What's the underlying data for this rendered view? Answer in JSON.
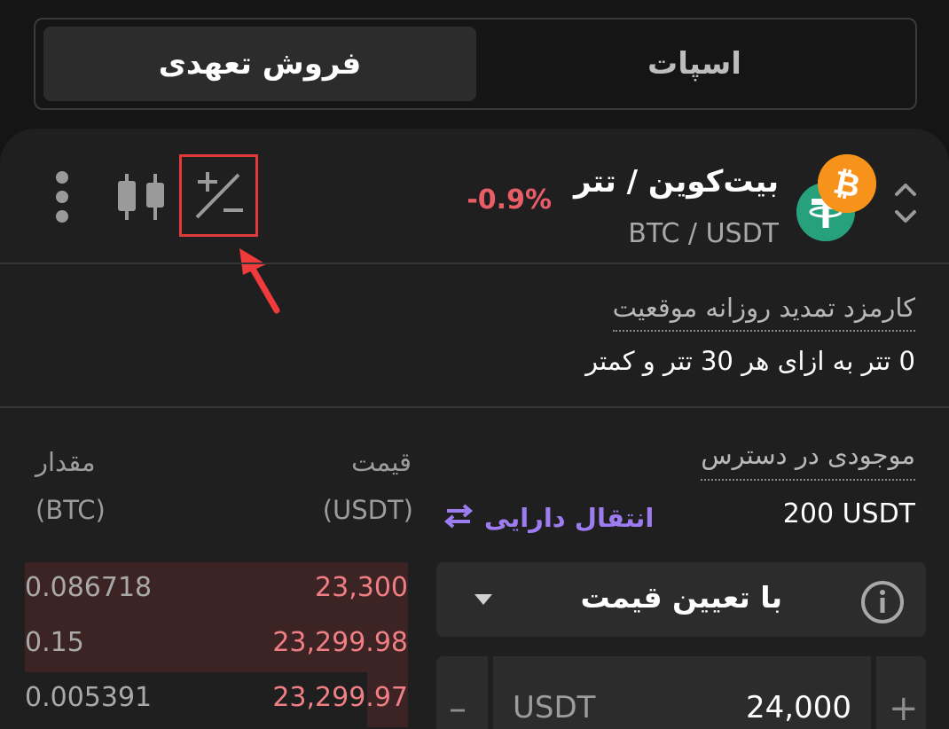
{
  "tabs": {
    "active_label": "فروش تعهدی",
    "inactive_label": "اسپات"
  },
  "pair": {
    "title": "بیت‌کوین / تتر",
    "symbol": "BTC / USDT",
    "change": "-0.9%",
    "base_coin_letter": "₿",
    "quote_coin_letter": "₮"
  },
  "funding": {
    "label": "کارمزد تمدید روزانه موقعیت",
    "value": "0 تتر به ازای هر 30 تتر و کمتر"
  },
  "orderbook": {
    "price_header": "قیمت",
    "price_unit": "(USDT)",
    "qty_header": "مقدار",
    "qty_unit": "(BTC)",
    "rows": [
      {
        "price": "23,300",
        "qty": "0.086718"
      },
      {
        "price": "23,299.98",
        "qty": "0.15"
      },
      {
        "price": "23,299.97",
        "qty": "0.005391"
      }
    ]
  },
  "balance": {
    "label": "موجودی در دسترس",
    "value": "200 USDT",
    "transfer_label": "انتقال دارایی"
  },
  "order_type": {
    "selected": "با تعیین قیمت"
  },
  "price_field": {
    "unit": "USDT",
    "value": "24,000",
    "minus": "–",
    "plus": "+"
  },
  "colors": {
    "background": "#151515",
    "card": "#1f1f1f",
    "negative": "#e85d67",
    "ask_price": "#f07f85",
    "ask_bg": "#3c2324",
    "accent_purple": "#9d7cf0",
    "highlight_box": "#e03a3a"
  },
  "icons": [
    "chevron-up-down-icon",
    "more-vertical-icon",
    "candlestick-chart-icon",
    "plus-minus-icon",
    "red-arrow-annotation-icon",
    "transfer-arrows-icon",
    "info-icon",
    "caret-down-icon"
  ]
}
